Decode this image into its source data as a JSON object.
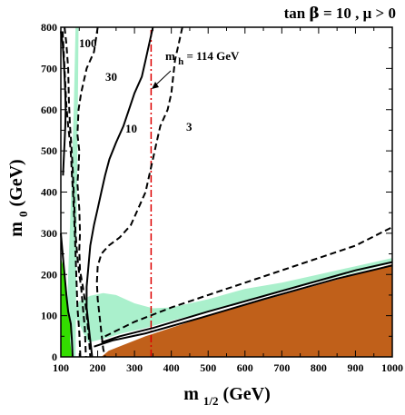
{
  "chart_data": {
    "type": "line",
    "title_parts": {
      "a": "tan",
      "b": "β",
      "c": " = 10 ,  μ > 0"
    },
    "xlabel": {
      "main": "m",
      "sub": "1/2",
      "tail": " (GeV)"
    },
    "ylabel": {
      "main": "m",
      "sub": "0",
      "tail": " (GeV)"
    },
    "xlim": [
      100,
      1000
    ],
    "ylim": [
      0,
      800
    ],
    "xticks": [
      100,
      200,
      300,
      400,
      500,
      600,
      700,
      800,
      900,
      1000
    ],
    "yticks": [
      0,
      100,
      200,
      300,
      400,
      500,
      600,
      700,
      800
    ],
    "grid": false,
    "colors": {
      "brown_region": "#c0601a",
      "light_green": "#aaf0cc",
      "dark_green": "#33dd00",
      "higgs_line": "#dd0000",
      "contour": "#000000"
    },
    "annotations": {
      "higgs_main": "m",
      "higgs_sub": "h",
      "higgs_value": " = 114 GeV",
      "c100": "100",
      "c30": "30",
      "c10": "10",
      "c3": "3"
    },
    "regions": {
      "brown": [
        [
          210,
          0
        ],
        [
          230,
          15
        ],
        [
          330,
          50
        ],
        [
          500,
          100
        ],
        [
          700,
          150
        ],
        [
          900,
          200
        ],
        [
          1000,
          225
        ],
        [
          1000,
          0
        ]
      ],
      "light_green_cosmo": [
        [
          130,
          110
        ],
        [
          150,
          135
        ],
        [
          180,
          148
        ],
        [
          215,
          155
        ],
        [
          250,
          150
        ],
        [
          300,
          130
        ],
        [
          350,
          118
        ],
        [
          400,
          120
        ],
        [
          500,
          140
        ],
        [
          600,
          165
        ],
        [
          700,
          180
        ],
        [
          800,
          200
        ],
        [
          900,
          220
        ],
        [
          1000,
          240
        ],
        [
          1000,
          228
        ],
        [
          900,
          205
        ],
        [
          800,
          182
        ],
        [
          700,
          160
        ],
        [
          600,
          135
        ],
        [
          500,
          110
        ],
        [
          400,
          88
        ],
        [
          330,
          70
        ],
        [
          270,
          58
        ],
        [
          220,
          45
        ],
        [
          175,
          35
        ],
        [
          160,
          60
        ],
        [
          150,
          80
        ],
        [
          140,
          95
        ]
      ],
      "light_green_strip": [
        [
          115,
          0
        ],
        [
          120,
          200
        ],
        [
          128,
          400
        ],
        [
          135,
          600
        ],
        [
          140,
          800
        ],
        [
          148,
          800
        ],
        [
          146,
          600
        ],
        [
          144,
          400
        ],
        [
          142,
          200
        ],
        [
          140,
          0
        ]
      ],
      "dark_green": [
        [
          100,
          0
        ],
        [
          100,
          240
        ],
        [
          108,
          215
        ],
        [
          115,
          170
        ],
        [
          120,
          120
        ],
        [
          127,
          80
        ],
        [
          125,
          40
        ],
        [
          130,
          0
        ]
      ]
    },
    "series": [
      {
        "name": "Higgs",
        "style": "dashdot",
        "color": "#dd0000",
        "points": [
          [
            345,
            0
          ],
          [
            345,
            800
          ]
        ]
      },
      {
        "name": "g-2 solid upper",
        "style": "solid",
        "points": [
          [
            210,
            35
          ],
          [
            260,
            50
          ],
          [
            350,
            70
          ],
          [
            500,
            110
          ],
          [
            700,
            160
          ],
          [
            900,
            210
          ],
          [
            1000,
            230
          ]
        ]
      },
      {
        "name": "g-2 solid lower",
        "style": "solid",
        "points": [
          [
            190,
            25
          ],
          [
            240,
            40
          ],
          [
            330,
            57
          ],
          [
            480,
            95
          ],
          [
            650,
            140
          ],
          [
            850,
            190
          ],
          [
            1000,
            222
          ]
        ]
      },
      {
        "name": "b-s-gamma dashed",
        "style": "dashed",
        "points": [
          [
            220,
            50
          ],
          [
            300,
            85
          ],
          [
            400,
            120
          ],
          [
            500,
            150
          ],
          [
            600,
            180
          ],
          [
            700,
            210
          ],
          [
            800,
            240
          ],
          [
            900,
            270
          ],
          [
            1000,
            315
          ]
        ]
      },
      {
        "name": "c100 left",
        "style": "dashed",
        "points": [
          [
            105,
            790
          ],
          [
            110,
            700
          ],
          [
            115,
            610
          ],
          [
            120,
            560
          ],
          [
            125,
            520
          ],
          [
            128,
            480
          ],
          [
            130,
            440
          ],
          [
            133,
            400
          ],
          [
            138,
            300
          ],
          [
            142,
            200
          ],
          [
            145,
            120
          ],
          [
            150,
            60
          ],
          [
            153,
            0
          ]
        ]
      },
      {
        "name": "c100 right",
        "style": "dashed",
        "points": [
          [
            110,
            800
          ],
          [
            115,
            760
          ],
          [
            120,
            700
          ],
          [
            122,
            620
          ],
          [
            125,
            560
          ],
          [
            128,
            520
          ],
          [
            132,
            460
          ],
          [
            135,
            400
          ],
          [
            138,
            340
          ],
          [
            140,
            300
          ],
          [
            145,
            240
          ],
          [
            150,
            200
          ],
          [
            155,
            170
          ],
          [
            160,
            120
          ],
          [
            165,
            70
          ],
          [
            168,
            0
          ]
        ]
      },
      {
        "name": "c30",
        "style": "dashed",
        "points": [
          [
            200,
            800
          ],
          [
            190,
            740
          ],
          [
            170,
            700
          ],
          [
            155,
            640
          ],
          [
            148,
            600
          ],
          [
            145,
            540
          ],
          [
            150,
            500
          ],
          [
            148,
            460
          ],
          [
            145,
            420
          ],
          [
            150,
            360
          ],
          [
            152,
            300
          ],
          [
            150,
            260
          ],
          [
            152,
            210
          ],
          [
            160,
            170
          ],
          [
            168,
            120
          ],
          [
            175,
            60
          ],
          [
            180,
            0
          ]
        ]
      },
      {
        "name": "c10",
        "style": "solid",
        "points": [
          [
            350,
            800
          ],
          [
            340,
            760
          ],
          [
            330,
            720
          ],
          [
            320,
            680
          ],
          [
            300,
            640
          ],
          [
            285,
            600
          ],
          [
            270,
            560
          ],
          [
            250,
            520
          ],
          [
            232,
            480
          ],
          [
            220,
            440
          ],
          [
            210,
            400
          ],
          [
            200,
            360
          ],
          [
            190,
            320
          ],
          [
            180,
            270
          ],
          [
            175,
            220
          ],
          [
            170,
            170
          ],
          [
            170,
            120
          ],
          [
            175,
            80
          ],
          [
            180,
            40
          ],
          [
            185,
            0
          ]
        ]
      },
      {
        "name": "c3",
        "style": "dashed",
        "points": [
          [
            430,
            800
          ],
          [
            420,
            760
          ],
          [
            410,
            720
          ],
          [
            405,
            680
          ],
          [
            400,
            640
          ],
          [
            390,
            600
          ],
          [
            370,
            560
          ],
          [
            360,
            520
          ],
          [
            350,
            480
          ],
          [
            340,
            440
          ],
          [
            330,
            400
          ],
          [
            310,
            360
          ],
          [
            290,
            320
          ],
          [
            260,
            290
          ],
          [
            230,
            270
          ],
          [
            210,
            250
          ],
          [
            200,
            220
          ],
          [
            198,
            180
          ],
          [
            200,
            140
          ],
          [
            205,
            100
          ],
          [
            210,
            60
          ],
          [
            215,
            20
          ],
          [
            220,
            0
          ]
        ]
      },
      {
        "name": "dark left solid",
        "style": "solid",
        "points": [
          [
            100,
            790
          ],
          [
            105,
            760
          ],
          [
            108,
            720
          ],
          [
            110,
            680
          ],
          [
            112,
            640
          ],
          [
            113,
            600
          ],
          [
            112,
            560
          ],
          [
            110,
            520
          ],
          [
            108,
            480
          ],
          [
            106,
            440
          ]
        ]
      },
      {
        "name": "left edge solid",
        "style": "solid",
        "points": [
          [
            100,
            300
          ],
          [
            105,
            250
          ],
          [
            110,
            200
          ],
          [
            115,
            150
          ],
          [
            120,
            110
          ],
          [
            127,
            80
          ],
          [
            130,
            40
          ],
          [
            132,
            0
          ]
        ]
      }
    ]
  }
}
